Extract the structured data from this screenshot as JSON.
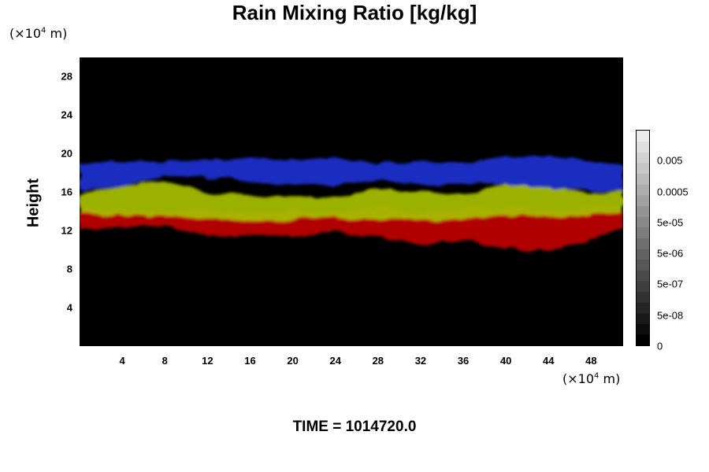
{
  "chart_data": {
    "type": "heatmap",
    "title": "Rain Mixing Ratio [kg/kg]",
    "ylabel": "Height",
    "y_unit_prefix": "(×10",
    "y_unit_exp": "4",
    "y_unit_suffix": " m)",
    "x_unit_prefix": "(×10",
    "x_unit_exp": "4",
    "x_unit_suffix": " m)",
    "xlim": [
      0,
      51
    ],
    "ylim": [
      0,
      30
    ],
    "x_ticks": [
      4,
      8,
      12,
      16,
      20,
      24,
      28,
      32,
      36,
      40,
      44,
      48
    ],
    "y_ticks": [
      4,
      8,
      12,
      16,
      20,
      24,
      28
    ],
    "colorbar_labels": [
      "0.005",
      "0.0005",
      "5e-05",
      "5e-06",
      "5e-07",
      "5e-08",
      "0"
    ],
    "colorbar_label_levels": [
      0.005,
      0.0005,
      5e-05,
      5e-06,
      5e-07,
      5e-08,
      0
    ],
    "colorbar_range": [
      0,
      0.05
    ],
    "colorbar_scale": "log",
    "background_color": "#000000",
    "layers": [
      {
        "color": "#c00000",
        "x": [
          0,
          4,
          8,
          12,
          16,
          20,
          24,
          28,
          32,
          36,
          40,
          44,
          48,
          51
        ],
        "bottom": [
          12.2,
          12.4,
          12.5,
          11.5,
          11.4,
          11.4,
          12.0,
          11.3,
          10.6,
          11.0,
          10.2,
          9.8,
          11.0,
          12.3
        ],
        "top": [
          14.3,
          14.0,
          13.9,
          14.2,
          13.8,
          14.0,
          13.8,
          14.3,
          13.8,
          14.0,
          14.4,
          14.0,
          14.2,
          14.4
        ]
      },
      {
        "color": "#a8c000",
        "x": [
          0,
          4,
          8,
          12,
          16,
          20,
          24,
          28,
          32,
          36,
          40,
          44,
          48,
          51
        ],
        "bottom": [
          13.8,
          13.6,
          13.6,
          13.2,
          13.0,
          13.2,
          13.4,
          13.3,
          13.2,
          13.2,
          13.6,
          13.4,
          13.6,
          14.0
        ],
        "top": [
          15.8,
          16.6,
          17.2,
          16.0,
          15.6,
          15.6,
          15.4,
          16.4,
          16.0,
          15.8,
          16.8,
          16.6,
          15.8,
          16.0
        ]
      },
      {
        "color": "#2030d0",
        "x": [
          0,
          4,
          8,
          12,
          16,
          20,
          24,
          28,
          32,
          36,
          40,
          44,
          48,
          51
        ],
        "bottom": [
          16.2,
          16.6,
          17.6,
          17.5,
          17.2,
          16.6,
          16.8,
          17.2,
          16.8,
          16.8,
          16.8,
          16.4,
          16.2,
          16.0
        ],
        "top": [
          19.0,
          19.2,
          19.2,
          19.4,
          19.6,
          19.4,
          19.6,
          19.0,
          19.2,
          19.0,
          19.6,
          19.8,
          19.2,
          18.6
        ]
      }
    ]
  },
  "footer": {
    "time_label": "TIME = 1014720.0"
  }
}
